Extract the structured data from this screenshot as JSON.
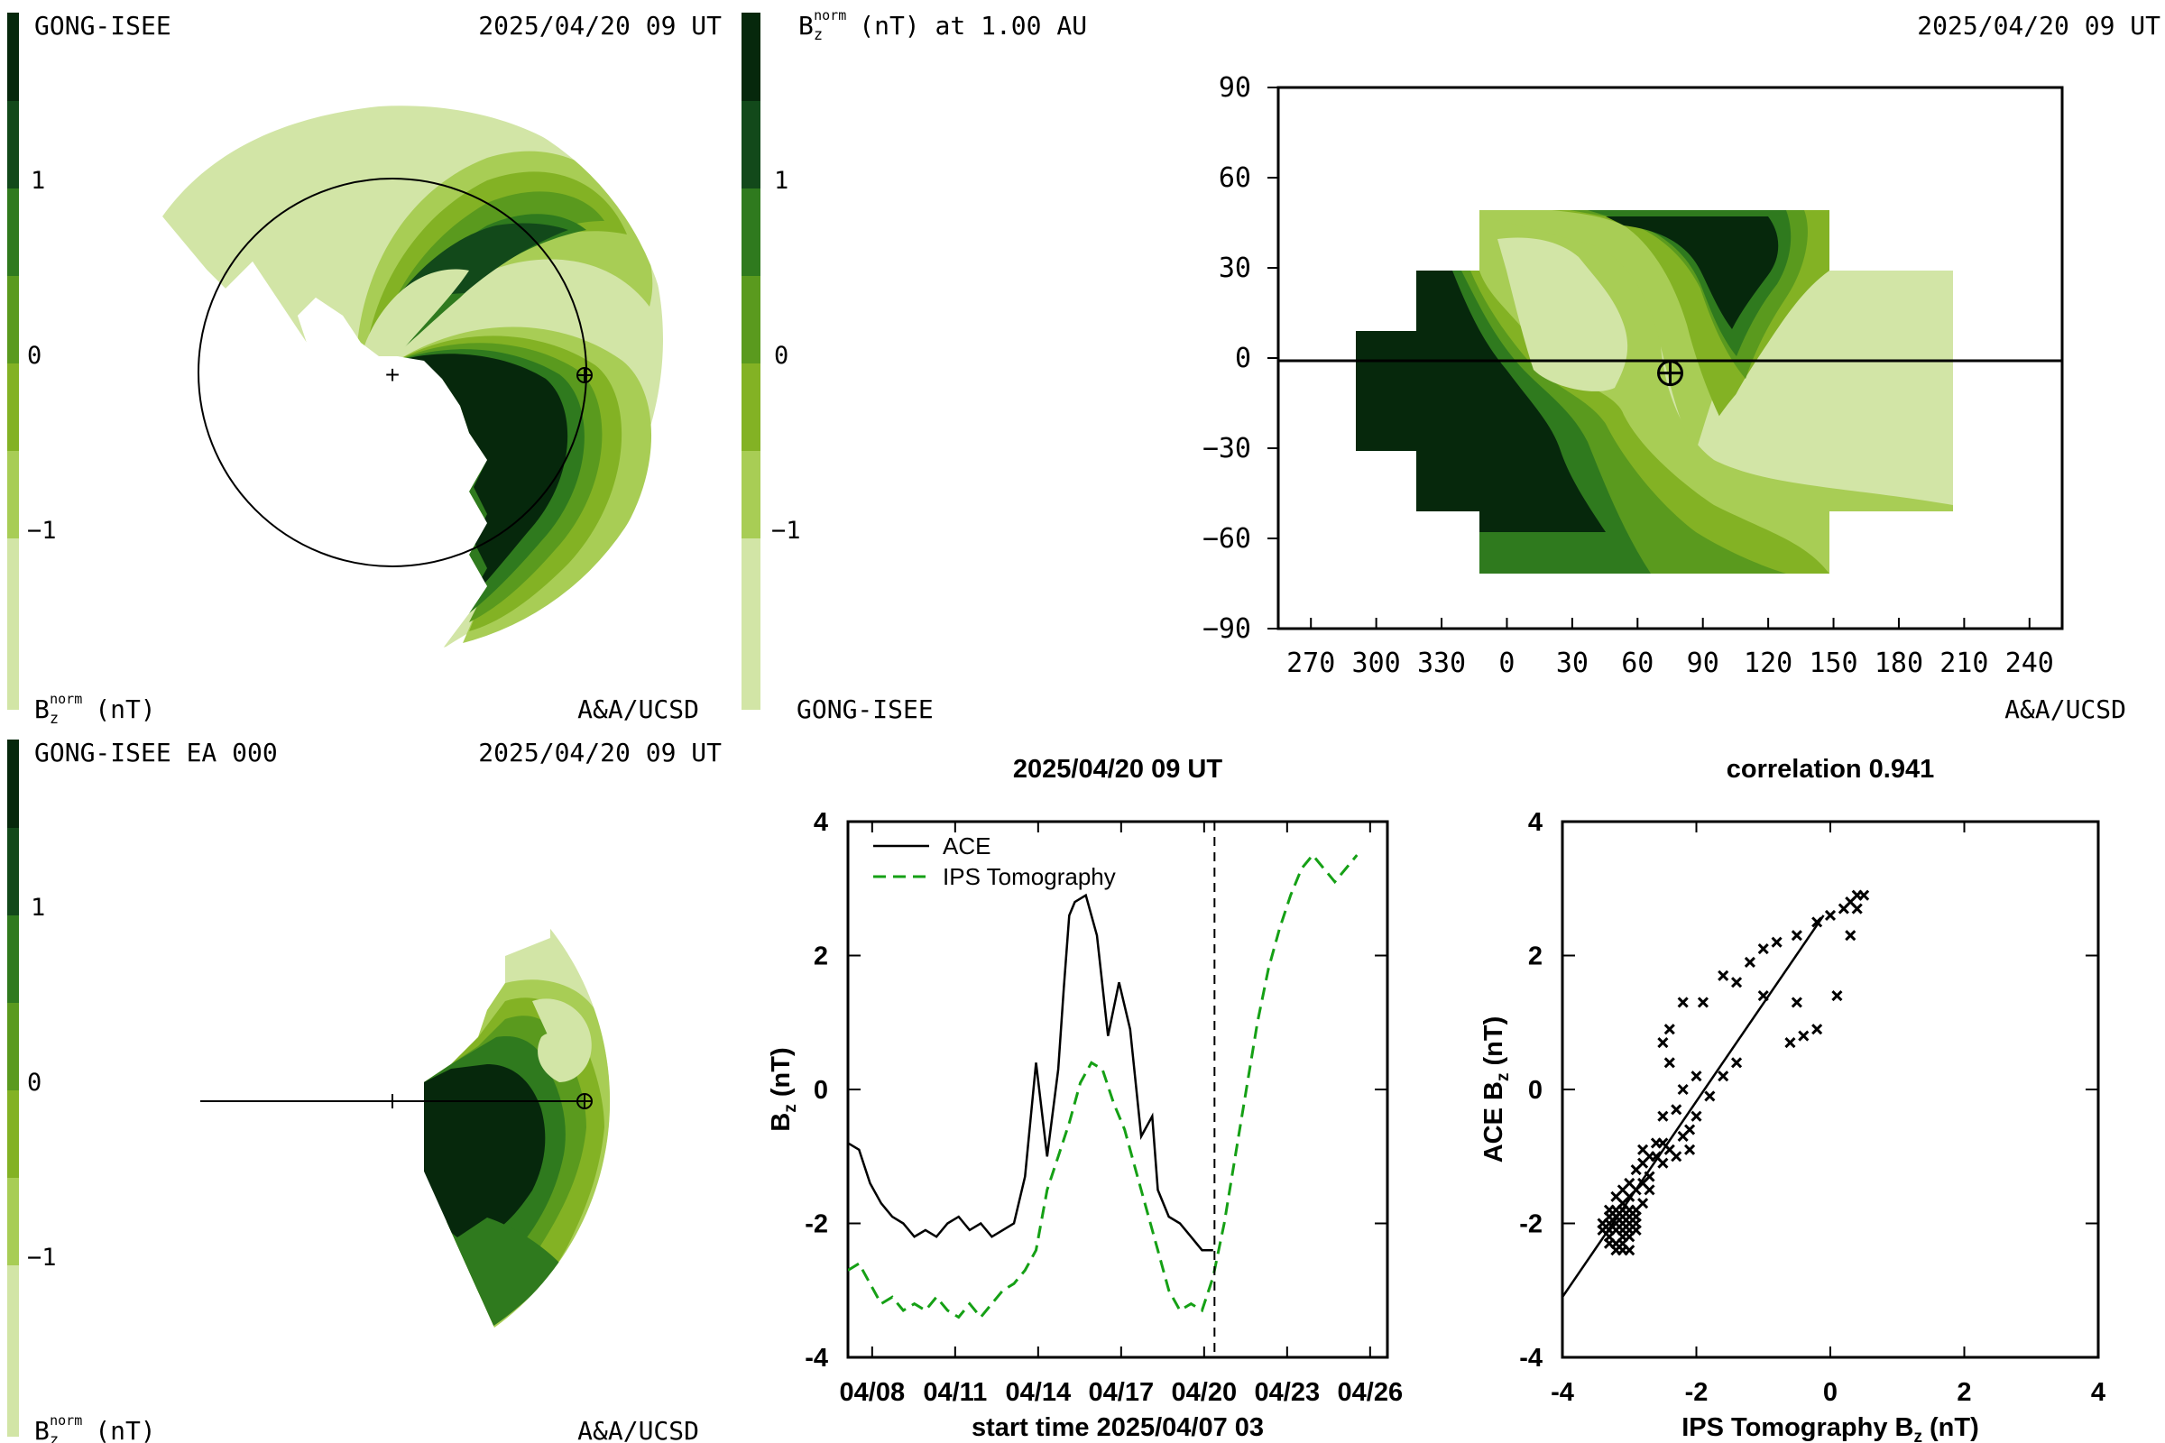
{
  "colors": {
    "levels": [
      "#d2e5a6",
      "#a8cd55",
      "#83b224",
      "#5a9a1e",
      "#2f7a1e",
      "#12491a",
      "#06280c"
    ],
    "ace": "#000000",
    "ips": "#15a015"
  },
  "panels": {
    "tl": {
      "title_left": "GONG-ISEE",
      "title_right": "2025/04/20 09 UT",
      "footer_left_base": "B",
      "footer_left_sub": "z",
      "footer_left_sup": "norm",
      "footer_left_unit": "(nT)",
      "footer_right": "A&A/UCSD",
      "colorbar_ticks": [
        "1",
        "0",
        "−1"
      ]
    },
    "tr": {
      "title_base": "B",
      "title_sub": "z",
      "title_sup": "norm",
      "title_rest": "(nT) at 1.00 AU",
      "title_right": "2025/04/20 09 UT",
      "footer_left": "GONG-ISEE",
      "footer_right": "A&A/UCSD",
      "colorbar_ticks": [
        "1",
        "0",
        "−1"
      ]
    },
    "bl": {
      "title_left": "GONG-ISEE EA 000",
      "title_right": "2025/04/20 09 UT",
      "footer_left_base": "B",
      "footer_left_sub": "z",
      "footer_left_sup": "norm",
      "footer_left_unit": "(nT)",
      "footer_right": "A&A/UCSD",
      "colorbar_ticks": [
        "1",
        "0",
        "−1"
      ]
    }
  },
  "chart_data": [
    {
      "type": "heatmap",
      "title": "(nT) at 1.00 AU",
      "x_ticks": [
        "270",
        "300",
        "330",
        "0",
        "30",
        "60",
        "90",
        "120",
        "150",
        "180",
        "210",
        "240"
      ],
      "y_ticks": [
        "90",
        "60",
        "30",
        "0",
        "−30",
        "−60",
        "−90"
      ],
      "xlim": [
        -105,
        255
      ],
      "ylim": [
        -90,
        90
      ],
      "earth_marker": [
        75,
        -5
      ]
    },
    {
      "type": "line",
      "title": "2025/04/20 09 UT",
      "xlabel": "start time 2025/04/07 03",
      "ylabel_base": "B",
      "ylabel_sub": "z",
      "ylabel_unit": " (nT)",
      "x_tick_labels": [
        "04/08",
        "04/11",
        "04/14",
        "04/17",
        "04/20",
        "04/23",
        "04/26"
      ],
      "x_tick_days": [
        0.875,
        3.875,
        6.875,
        9.875,
        12.875,
        15.875,
        18.875
      ],
      "y_ticks": [
        "4",
        "2",
        "0",
        "-2",
        "-4"
      ],
      "xlim": [
        0,
        19.5
      ],
      "ylim": [
        -4,
        4
      ],
      "now_marker_day": 13.25,
      "series": [
        {
          "name": "ACE",
          "style": "solid",
          "x": [
            0.0,
            0.4,
            0.8,
            1.2,
            1.6,
            2.0,
            2.4,
            2.8,
            3.2,
            3.6,
            4.0,
            4.4,
            4.8,
            5.2,
            5.6,
            6.0,
            6.4,
            6.8,
            7.2,
            7.6,
            7.8,
            8.0,
            8.2,
            8.6,
            9.0,
            9.4,
            9.8,
            10.2,
            10.6,
            11.0,
            11.2,
            11.6,
            12.0,
            12.4,
            12.8,
            13.2
          ],
          "y": [
            -0.8,
            -0.9,
            -1.4,
            -1.7,
            -1.9,
            -2.0,
            -2.2,
            -2.1,
            -2.2,
            -2.0,
            -1.9,
            -2.1,
            -2.0,
            -2.2,
            -2.1,
            -2.0,
            -1.3,
            0.4,
            -1.0,
            0.3,
            1.5,
            2.6,
            2.8,
            2.9,
            2.3,
            0.8,
            1.6,
            0.9,
            -0.7,
            -0.4,
            -1.5,
            -1.9,
            -2.0,
            -2.2,
            -2.4,
            -2.4
          ]
        },
        {
          "name": "IPS Tomography",
          "style": "dashed",
          "x": [
            0.0,
            0.4,
            0.8,
            1.2,
            1.6,
            2.0,
            2.4,
            2.8,
            3.2,
            3.6,
            4.0,
            4.4,
            4.8,
            5.2,
            5.6,
            6.0,
            6.4,
            6.8,
            7.2,
            7.6,
            8.0,
            8.4,
            8.8,
            9.2,
            9.6,
            10.0,
            10.4,
            10.8,
            11.2,
            11.6,
            12.0,
            12.4,
            12.8,
            13.2,
            13.6,
            14.0,
            14.4,
            14.8,
            15.2,
            15.6,
            16.0,
            16.4,
            16.8,
            17.2,
            17.6,
            18.0,
            18.4
          ],
          "y": [
            -2.7,
            -2.6,
            -2.9,
            -3.2,
            -3.1,
            -3.3,
            -3.2,
            -3.3,
            -3.1,
            -3.3,
            -3.4,
            -3.2,
            -3.4,
            -3.2,
            -3.0,
            -2.9,
            -2.7,
            -2.4,
            -1.5,
            -1.0,
            -0.5,
            0.1,
            0.4,
            0.3,
            -0.2,
            -0.6,
            -1.2,
            -1.8,
            -2.4,
            -3.0,
            -3.3,
            -3.2,
            -3.3,
            -2.8,
            -2.0,
            -1.0,
            0.0,
            1.0,
            1.8,
            2.4,
            2.9,
            3.3,
            3.5,
            3.3,
            3.1,
            3.3,
            3.5
          ]
        }
      ]
    },
    {
      "type": "scatter",
      "title": "correlation 0.941",
      "xlabel_base": "IPS Tomography B",
      "xlabel_sub": "z",
      "xlabel_unit": " (nT)",
      "ylabel_base": "ACE B",
      "ylabel_sub": "z",
      "ylabel_unit": " (nT)",
      "x_ticks": [
        "-4",
        "-2",
        "0",
        "2",
        "4"
      ],
      "y_ticks": [
        "4",
        "2",
        "0",
        "-2",
        "-4"
      ],
      "xlim": [
        -4,
        4
      ],
      "ylim": [
        -4,
        4
      ],
      "fit_line": [
        [
          -4.0,
          -3.1
        ],
        [
          -0.1,
          2.6
        ]
      ],
      "points": [
        [
          -3.3,
          -2.1
        ],
        [
          -3.2,
          -1.9
        ],
        [
          -3.1,
          -2.2
        ],
        [
          -3.3,
          -1.8
        ],
        [
          -3.0,
          -2.0
        ],
        [
          -3.2,
          -2.3
        ],
        [
          -3.1,
          -1.7
        ],
        [
          -3.4,
          -2.0
        ],
        [
          -2.9,
          -1.9
        ],
        [
          -3.0,
          -2.4
        ],
        [
          -3.2,
          -2.0
        ],
        [
          -3.1,
          -2.1
        ],
        [
          -3.3,
          -2.2
        ],
        [
          -3.0,
          -1.6
        ],
        [
          -2.9,
          -2.1
        ],
        [
          -3.1,
          -1.9
        ],
        [
          -3.2,
          -2.4
        ],
        [
          -3.0,
          -1.8
        ],
        [
          -3.3,
          -2.0
        ],
        [
          -2.8,
          -1.7
        ],
        [
          -3.1,
          -2.3
        ],
        [
          -3.2,
          -1.6
        ],
        [
          -3.0,
          -2.2
        ],
        [
          -2.9,
          -1.5
        ],
        [
          -3.1,
          -2.0
        ],
        [
          -3.3,
          -1.9
        ],
        [
          -3.0,
          -2.0
        ],
        [
          -3.2,
          -2.1
        ],
        [
          -2.9,
          -1.8
        ],
        [
          -3.1,
          -1.8
        ],
        [
          -2.8,
          -1.4
        ],
        [
          -2.7,
          -1.3
        ],
        [
          -2.6,
          -1.0
        ],
        [
          -2.5,
          -0.8
        ],
        [
          -2.7,
          -1.5
        ],
        [
          -2.4,
          -0.9
        ],
        [
          -2.3,
          -1.0
        ],
        [
          -2.2,
          -0.7
        ],
        [
          -2.5,
          -1.1
        ],
        [
          -2.1,
          -0.9
        ],
        [
          -2.0,
          -0.4
        ],
        [
          -2.1,
          -0.6
        ],
        [
          -1.8,
          -0.1
        ],
        [
          -1.6,
          0.2
        ],
        [
          -1.4,
          0.4
        ],
        [
          -2.4,
          0.4
        ],
        [
          -2.5,
          0.7
        ],
        [
          -2.4,
          0.9
        ],
        [
          -2.2,
          1.3
        ],
        [
          -1.9,
          1.3
        ],
        [
          -1.6,
          1.7
        ],
        [
          -1.4,
          1.6
        ],
        [
          -1.2,
          1.9
        ],
        [
          -1.0,
          2.1
        ],
        [
          -0.8,
          2.2
        ],
        [
          -0.5,
          2.3
        ],
        [
          -0.2,
          2.5
        ],
        [
          0.0,
          2.6
        ],
        [
          0.2,
          2.7
        ],
        [
          0.3,
          2.8
        ],
        [
          0.4,
          2.9
        ],
        [
          0.5,
          2.9
        ],
        [
          0.4,
          2.7
        ],
        [
          0.3,
          2.3
        ],
        [
          0.1,
          1.4
        ],
        [
          -0.5,
          1.3
        ],
        [
          -0.4,
          0.8
        ],
        [
          -0.6,
          0.7
        ],
        [
          -0.2,
          0.9
        ],
        [
          -1.0,
          1.4
        ],
        [
          -2.8,
          -1.1
        ],
        [
          -2.6,
          -0.8
        ],
        [
          -2.3,
          -0.3
        ],
        [
          -2.2,
          0.0
        ],
        [
          -2.0,
          0.2
        ],
        [
          -2.7,
          -1.0
        ],
        [
          -2.9,
          -1.2
        ],
        [
          -3.0,
          -1.4
        ],
        [
          -2.8,
          -0.9
        ],
        [
          -2.5,
          -0.4
        ],
        [
          -3.2,
          -1.9
        ],
        [
          -3.1,
          -2.0
        ],
        [
          -3.0,
          -2.1
        ],
        [
          -3.3,
          -2.3
        ],
        [
          -3.1,
          -2.4
        ],
        [
          -3.2,
          -1.8
        ],
        [
          -3.0,
          -1.9
        ],
        [
          -2.9,
          -2.0
        ],
        [
          -3.1,
          -1.5
        ],
        [
          -3.4,
          -2.1
        ]
      ]
    }
  ]
}
